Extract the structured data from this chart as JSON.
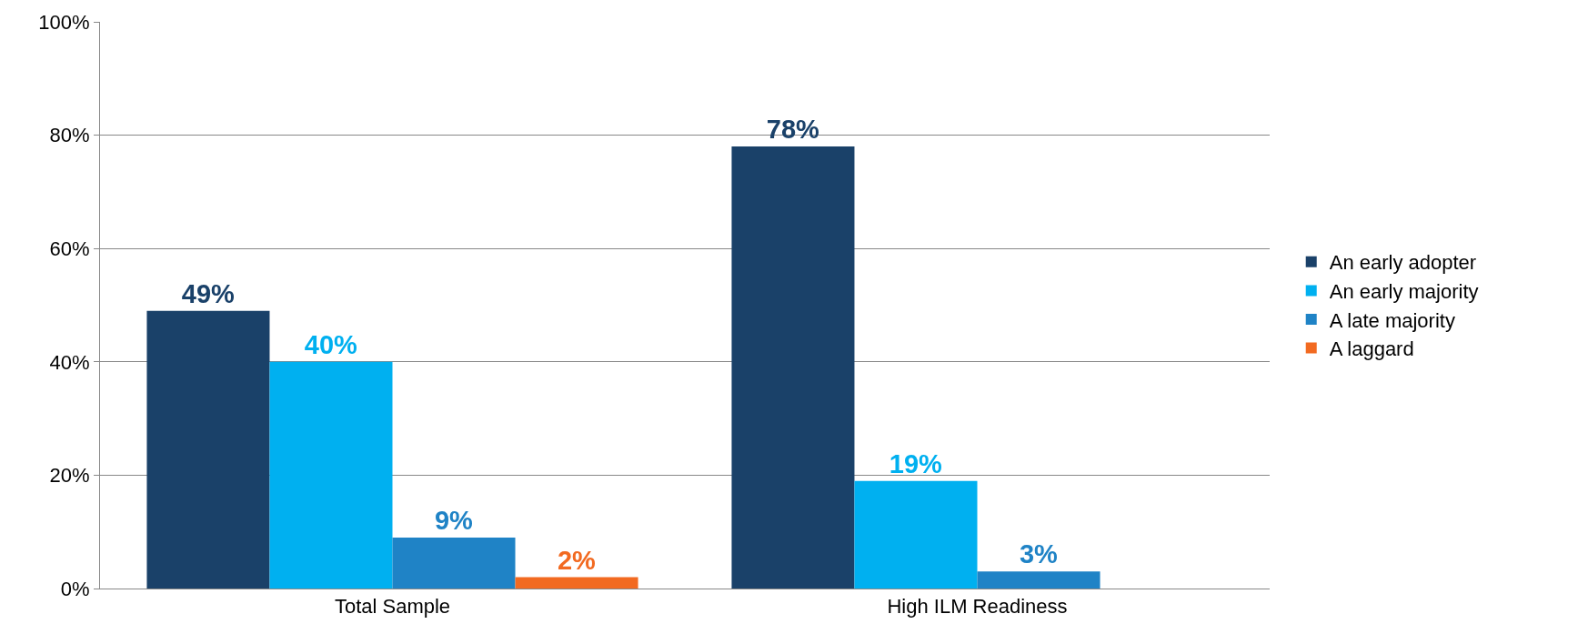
{
  "chart_data": {
    "type": "bar",
    "categories": [
      "Total Sample",
      "High ILM Readiness"
    ],
    "series": [
      {
        "name": "An early adopter",
        "color": "#1a4169",
        "values": [
          49,
          78
        ],
        "value_labels": [
          "49%",
          "78%"
        ]
      },
      {
        "name": "An early majority",
        "color": "#00b0f0",
        "values": [
          40,
          19
        ],
        "value_labels": [
          "40%",
          "19%"
        ]
      },
      {
        "name": "A late majority",
        "color": "#1f83c6",
        "values": [
          9,
          3
        ],
        "value_labels": [
          "9%",
          "3%"
        ]
      },
      {
        "name": "A laggard",
        "color": "#f26a21",
        "values": [
          2,
          null
        ],
        "value_labels": [
          "2%",
          null
        ]
      }
    ],
    "ylim": [
      0,
      100
    ],
    "yticks": [
      {
        "value": 0,
        "label": "0%"
      },
      {
        "value": 20,
        "label": "20%"
      },
      {
        "value": 40,
        "label": "40%"
      },
      {
        "value": 60,
        "label": "60%"
      },
      {
        "value": 80,
        "label": "80%"
      },
      {
        "value": 100,
        "label": "100%"
      }
    ],
    "grid": "y",
    "legend": "right"
  }
}
